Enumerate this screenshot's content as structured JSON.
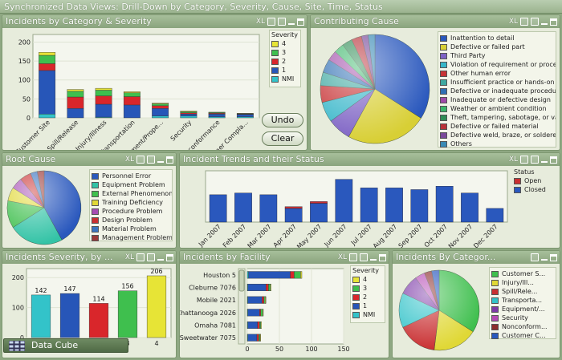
{
  "window": {
    "title": "Synchronized Data Views: Drill-Down by Category, Severity, Cause, Site, Time, Status"
  },
  "controls": {
    "xl": "XL"
  },
  "colors": {
    "sev4": "#e7e436",
    "sev3": "#3fbf4e",
    "sev2": "#d9262b",
    "sev1": "#2756b8",
    "nmi": "#33c3c9"
  },
  "panels": {
    "category": {
      "title": "Incidents by Category & Severity",
      "legend_title": "Severity",
      "legend": [
        "4",
        "3",
        "2",
        "1",
        "NMI"
      ],
      "buttons": {
        "undo": "Undo",
        "clear": "Clear"
      }
    },
    "cause": {
      "title": "Contributing Cause",
      "legend": [
        "Inattention to detail",
        "Defective or failed part",
        "Third Party",
        "Violation of requirement or procedu...",
        "Other human error",
        "Insufficient practice or hands-on e...",
        "Defective or inadequate procedure",
        "Inadequate or defective design",
        "Weather or ambient condition",
        "Theft, tampering, sabotage, or van...",
        "Defective or failed material",
        "Defective weld, braze, or soldered ...",
        "Others"
      ]
    },
    "root": {
      "title": "Root Cause",
      "legend": [
        "Personnel Error",
        "Equipment Problem",
        "External Phenomenon",
        "Training Deficiency",
        "Procedure Problem",
        "Design Problem",
        "Material Problem",
        "Management Problem"
      ]
    },
    "trends": {
      "title": "Incident Trends and their Status",
      "legend_title": "Status",
      "legend": [
        "Open",
        "Closed"
      ]
    },
    "severity": {
      "title": "Incidents Severity, by ..."
    },
    "facility": {
      "title": "Incidents by Facility",
      "legend_title": "Severity",
      "legend": [
        "4",
        "3",
        "2",
        "1",
        "NMI"
      ]
    },
    "bycat": {
      "title": "Incidents By Categor...",
      "legend": [
        "Customer S...",
        "Injury/Ill...",
        "Spill/Rele...",
        "Transporta...",
        "Equipment/...",
        "Security",
        "Nonconform...",
        "Customer C..."
      ]
    }
  },
  "data_cube": {
    "label": "Data Cube"
  },
  "chart_data": [
    {
      "type": "bar",
      "title": "Incidents by Category & Severity",
      "categories": [
        "Customer Site",
        "Spill/Release",
        "Injury/Illness",
        "Transportation",
        "Equipment/Prope...",
        "Security",
        "Nonconformance",
        "Customer Compla..."
      ],
      "series": [
        {
          "name": "NMI",
          "values": [
            10,
            0,
            2,
            0,
            5,
            5,
            3,
            3
          ]
        },
        {
          "name": "1",
          "values": [
            115,
            25,
            34,
            34,
            20,
            5,
            7,
            6
          ]
        },
        {
          "name": "2",
          "values": [
            18,
            30,
            22,
            22,
            7,
            3,
            2,
            1
          ]
        },
        {
          "name": "3",
          "values": [
            22,
            15,
            15,
            10,
            5,
            3,
            2,
            1
          ]
        },
        {
          "name": "4",
          "values": [
            8,
            5,
            5,
            3,
            2,
            2,
            1,
            1
          ]
        }
      ],
      "yticks": [
        0,
        50,
        100,
        150,
        200
      ],
      "ylim": [
        0,
        220
      ]
    },
    {
      "type": "pie",
      "title": "Contributing Cause",
      "labels": [
        "Inattention to detail",
        "Defective or failed part",
        "Third Party",
        "Violation of requirement or procedu...",
        "Other human error",
        "Insufficient practice or hands-on e...",
        "Defective or inadequate procedure",
        "Inadequate or defective design",
        "Weather or ambient condition",
        "Theft, tampering, sabotage, or van...",
        "Defective or failed material",
        "Defective weld, braze, or soldered ...",
        "Others"
      ],
      "values": [
        34,
        24,
        7,
        6,
        5,
        4,
        4,
        3,
        3,
        3,
        3,
        2,
        2
      ],
      "colors": [
        "#2a58bd",
        "#d8cf35",
        "#7d62c4",
        "#37b6c9",
        "#c73335",
        "#3fa8a0",
        "#2f6fb3",
        "#9f4aa8",
        "#3bb66a",
        "#2f8c55",
        "#b8323a",
        "#7a4a9a",
        "#3a8ab5"
      ]
    },
    {
      "type": "pie",
      "title": "Root Cause",
      "labels": [
        "Personnel Error",
        "Equipment Problem",
        "External Phenomenon",
        "Training Deficiency",
        "Procedure Problem",
        "Design Problem",
        "Material Problem",
        "Management Problem"
      ],
      "values": [
        42,
        24,
        12,
        6,
        5,
        5,
        3,
        3
      ],
      "colors": [
        "#2a58bd",
        "#33c3a6",
        "#3fbf4e",
        "#e0d836",
        "#a64db3",
        "#c93032",
        "#3a74c0",
        "#9b3a3a"
      ]
    },
    {
      "type": "bar",
      "title": "Incident Trends and their Status",
      "categories": [
        "Jan 2007",
        "Feb 2007",
        "Mar 2007",
        "Apr 2007",
        "May 2007",
        "Jun 2007",
        "Jul 2007",
        "Aug 2007",
        "Sep 2007",
        "Oct 2007",
        "Nov 2007",
        "Dec 2007"
      ],
      "series": [
        {
          "name": "Closed",
          "values": [
            16,
            17,
            16,
            8,
            11,
            25,
            20,
            20,
            19,
            21,
            17,
            8
          ]
        },
        {
          "name": "Open",
          "values": [
            0,
            0,
            0,
            1,
            1,
            0,
            0,
            0,
            0,
            0,
            0,
            0
          ]
        }
      ],
      "ylim": [
        0,
        30
      ]
    },
    {
      "type": "bar",
      "title": "Incidents Severity, by ...",
      "categories": [
        "NMI",
        "1",
        "2",
        "3",
        "4"
      ],
      "values": [
        142,
        147,
        114,
        156,
        206
      ],
      "colors": [
        "#33c3c9",
        "#2756b8",
        "#d9262b",
        "#3fbf4e",
        "#e7e436"
      ],
      "yticks": [
        0,
        100,
        200
      ],
      "ylim": [
        0,
        230
      ]
    },
    {
      "type": "bar",
      "title": "Incidents by Facility",
      "categories": [
        "Houston 5",
        "Cleburne 7076",
        "Mobile 2021",
        "Chattanooga 2026",
        "Omaha 7081",
        "Sweetwater 7075"
      ],
      "series": [
        {
          "name": "NMI",
          "values": [
            2,
            1,
            1,
            1,
            1,
            1
          ]
        },
        {
          "name": "1",
          "values": [
            65,
            28,
            22,
            18,
            15,
            14
          ]
        },
        {
          "name": "2",
          "values": [
            6,
            4,
            3,
            2,
            3,
            3
          ]
        },
        {
          "name": "3",
          "values": [
            10,
            3,
            2,
            3,
            2,
            2
          ]
        },
        {
          "name": "4",
          "values": [
            2,
            1,
            1,
            1,
            1,
            1
          ]
        }
      ],
      "xticks": [
        0,
        50,
        100,
        150
      ],
      "xlim": [
        0,
        150
      ]
    },
    {
      "type": "pie",
      "title": "Incidents By Categor...",
      "labels": [
        "Customer S...",
        "Injury/Ill...",
        "Spill/Rele...",
        "Transporta...",
        "Equipment/...",
        "Security",
        "Nonconform...",
        "Customer C..."
      ],
      "values": [
        34,
        18,
        16,
        14,
        8,
        4,
        3,
        3
      ],
      "colors": [
        "#3fbf4e",
        "#e0d836",
        "#c93032",
        "#33c3c9",
        "#7d3aa8",
        "#b54ab5",
        "#8c2e2e",
        "#2a58bd"
      ]
    }
  ]
}
